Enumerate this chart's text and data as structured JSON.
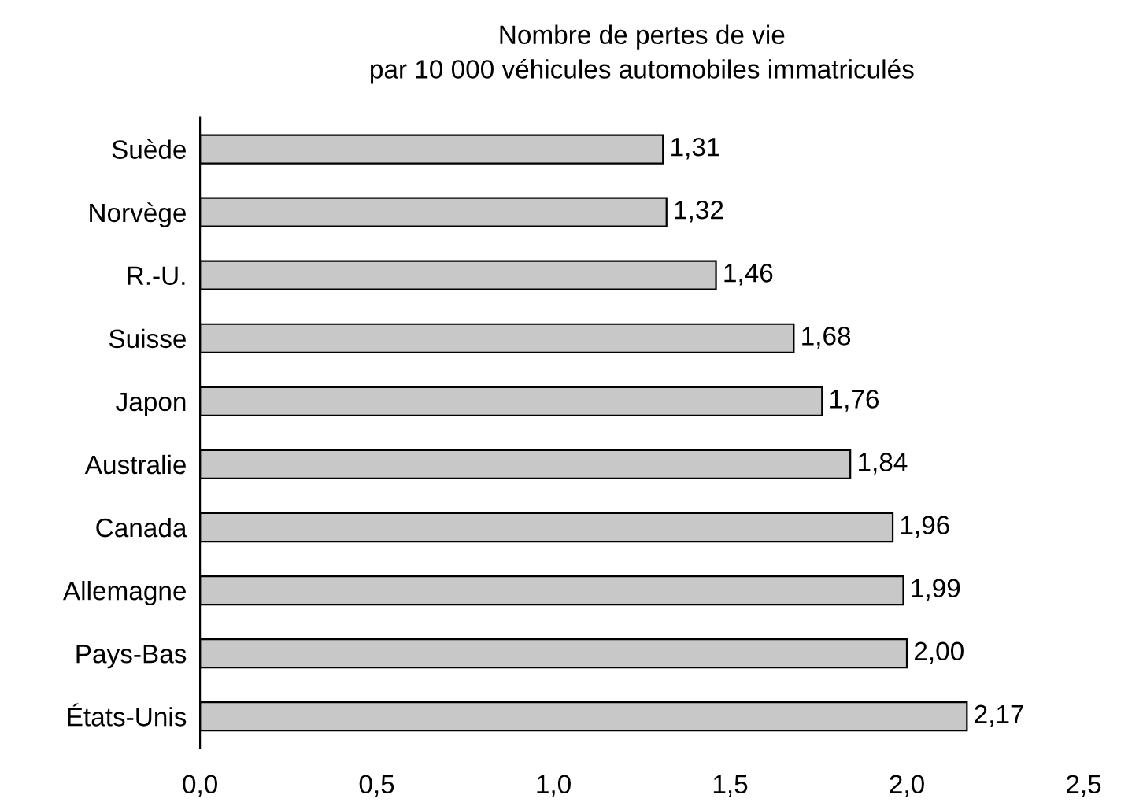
{
  "chart_data": {
    "type": "bar",
    "orientation": "horizontal",
    "title": "Nombre de pertes de vie\npar 10 000 véhicules automobiles immatriculés",
    "categories": [
      "Suède",
      "Norvège",
      "R.-U.",
      "Suisse",
      "Japon",
      "Australie",
      "Canada",
      "Allemagne",
      "Pays-Bas",
      "États-Unis"
    ],
    "values": [
      1.31,
      1.32,
      1.46,
      1.68,
      1.76,
      1.84,
      1.96,
      1.99,
      2.0,
      2.17
    ],
    "value_labels": [
      "1,31",
      "1,32",
      "1,46",
      "1,68",
      "1,76",
      "1,84",
      "1,96",
      "1,99",
      "2,00",
      "2,17"
    ],
    "color": "#c8c8c8",
    "xlim": [
      0,
      2.5
    ],
    "xticks": [
      {
        "value": 0,
        "label": "0,0"
      },
      {
        "value": 0.5,
        "label": "0,5"
      },
      {
        "value": 1,
        "label": "1,0"
      },
      {
        "value": 1.5,
        "label": "1,5"
      },
      {
        "value": 2,
        "label": "2,0"
      },
      {
        "value": 2.5,
        "label": "2,5"
      }
    ],
    "grid": false,
    "legend": false
  }
}
